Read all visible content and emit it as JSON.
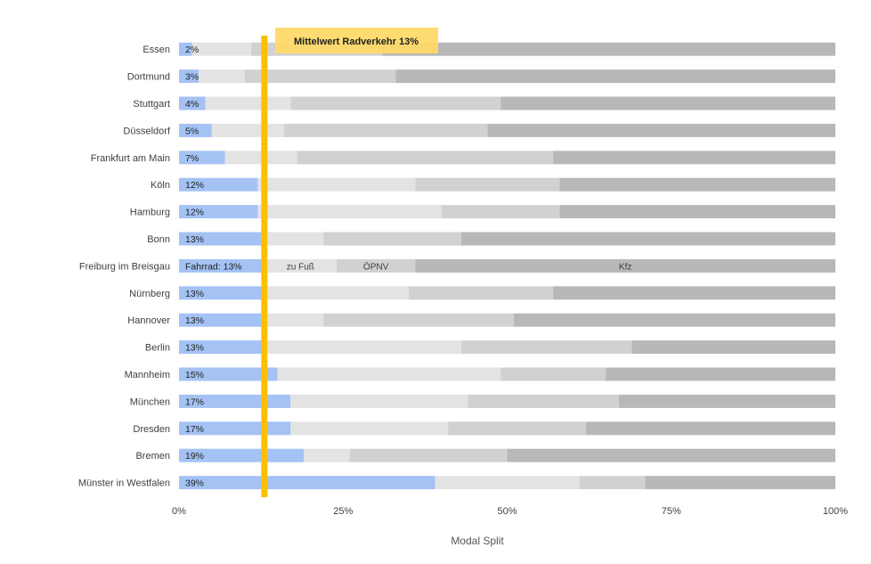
{
  "chart_data": {
    "type": "bar",
    "orientation": "horizontal",
    "stacked": true,
    "percent_stacked": true,
    "xlabel": "Modal Split",
    "ylabel": "",
    "xlim": [
      0,
      100
    ],
    "x_ticks": [
      "0%",
      "25%",
      "50%",
      "75%",
      "100%"
    ],
    "grid": false,
    "categories": [
      "Essen",
      "Dortmund",
      "Stuttgart",
      "Düsseldorf",
      "Frankfurt am Main",
      "Köln",
      "Hamburg",
      "Bonn",
      "Freiburg im Breisgau",
      "Nürnberg",
      "Hannover",
      "Berlin",
      "Mannheim",
      "München",
      "Dresden",
      "Bremen",
      "Münster in Westfalen"
    ],
    "series": [
      {
        "name": "Fahrrad",
        "color": "#a4c2f4",
        "values": [
          2,
          3,
          4,
          5,
          7,
          12,
          12,
          13,
          13,
          13,
          13,
          13,
          15,
          17,
          17,
          19,
          39
        ]
      },
      {
        "name": "zu Fuß",
        "color": "#e3e3e3",
        "values": [
          9,
          7,
          13,
          11,
          11,
          24,
          28,
          9,
          11,
          22,
          9,
          30,
          34,
          27,
          24,
          7,
          22
        ]
      },
      {
        "name": "ÖPNV",
        "color": "#d1d1d1",
        "values": [
          20,
          23,
          32,
          31,
          39,
          22,
          18,
          21,
          12,
          22,
          29,
          26,
          16,
          23,
          21,
          24,
          10
        ]
      },
      {
        "name": "Kfz",
        "color": "#b8b8b8",
        "values": [
          69,
          67,
          51,
          53,
          43,
          42,
          42,
          57,
          64,
          43,
          49,
          31,
          35,
          33,
          38,
          50,
          29
        ]
      }
    ],
    "bar_labels": [
      "2%",
      "3%",
      "4%",
      "5%",
      "7%",
      "12%",
      "12%",
      "13%",
      "Fahrrad: 13%",
      "13%",
      "13%",
      "13%",
      "15%",
      "17%",
      "17%",
      "19%",
      "39%"
    ],
    "series_labels_on_row": "Freiburg im Breisgau",
    "reference_line": {
      "value": 13,
      "label": "Mittelwert Radverkehr 13%",
      "color": "#ffbf00",
      "label_bg": "#ffd966"
    }
  }
}
